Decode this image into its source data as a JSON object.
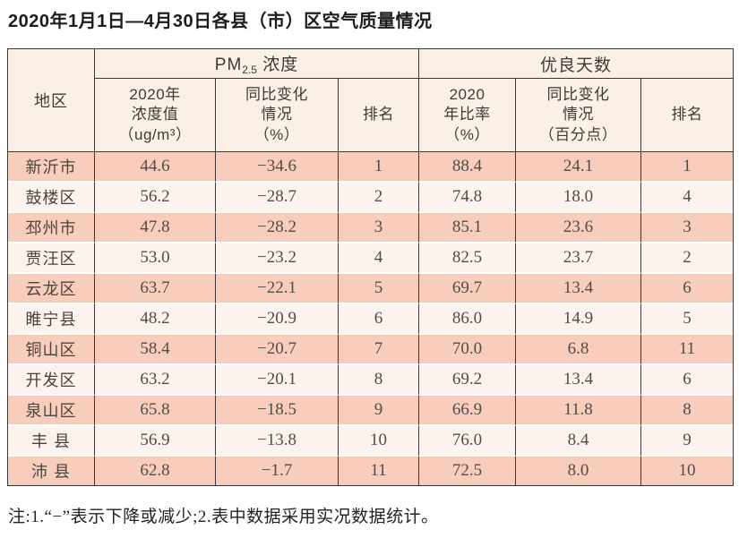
{
  "title": "2020年1月1日—4月30日各县（市）区空气质量情况",
  "footnote": "注:1.“−”表示下降或减少;2.表中数据采用实况数据统计。",
  "colors": {
    "row_stripe_bg": "#f8cdbc",
    "row_light_bg": "#fdf3ee",
    "header_bg": "#fbf0e5",
    "border": "#3a3735",
    "title_text": "#1d1c1b",
    "body_text": "#514c48"
  },
  "table": {
    "header": {
      "region": "地区",
      "pm25_group": {
        "prefix": "PM",
        "sub": "2.5",
        "suffix": " 浓度"
      },
      "good_days_group": "优良天数",
      "pm25_value": "2020年\n浓度值\n（ug/m³）",
      "pm25_change": "同比变化\n情况\n（%）",
      "pm25_rank": "排名",
      "days_rate": "2020\n年比率\n（%）",
      "days_change": "同比变化\n情况\n（百分点）",
      "days_rank": "排名"
    },
    "rows": [
      {
        "region": "新沂市",
        "pm25_value": "44.6",
        "pm25_change": "−34.6",
        "pm25_rank": "1",
        "days_rate": "88.4",
        "days_change": "24.1",
        "days_rank": "1"
      },
      {
        "region": "鼓楼区",
        "pm25_value": "56.2",
        "pm25_change": "−28.7",
        "pm25_rank": "2",
        "days_rate": "74.8",
        "days_change": "18.0",
        "days_rank": "4"
      },
      {
        "region": "邳州市",
        "pm25_value": "47.8",
        "pm25_change": "−28.2",
        "pm25_rank": "3",
        "days_rate": "85.1",
        "days_change": "23.6",
        "days_rank": "3"
      },
      {
        "region": "贾汪区",
        "pm25_value": "53.0",
        "pm25_change": "−23.2",
        "pm25_rank": "4",
        "days_rate": "82.5",
        "days_change": "23.7",
        "days_rank": "2"
      },
      {
        "region": "云龙区",
        "pm25_value": "63.7",
        "pm25_change": "−22.1",
        "pm25_rank": "5",
        "days_rate": "69.7",
        "days_change": "13.4",
        "days_rank": "6"
      },
      {
        "region": "睢宁县",
        "pm25_value": "48.2",
        "pm25_change": "−20.9",
        "pm25_rank": "6",
        "days_rate": "86.0",
        "days_change": "14.9",
        "days_rank": "5"
      },
      {
        "region": "铜山区",
        "pm25_value": "58.4",
        "pm25_change": "−20.7",
        "pm25_rank": "7",
        "days_rate": "70.0",
        "days_change": "6.8",
        "days_rank": "11"
      },
      {
        "region": "开发区",
        "pm25_value": "63.2",
        "pm25_change": "−20.1",
        "pm25_rank": "8",
        "days_rate": "69.2",
        "days_change": "13.4",
        "days_rank": "6"
      },
      {
        "region": "泉山区",
        "pm25_value": "65.8",
        "pm25_change": "−18.5",
        "pm25_rank": "9",
        "days_rate": "66.9",
        "days_change": "11.8",
        "days_rank": "8"
      },
      {
        "region": "丰 县",
        "pm25_value": "56.9",
        "pm25_change": "−13.8",
        "pm25_rank": "10",
        "days_rate": "76.0",
        "days_change": "8.4",
        "days_rank": "9"
      },
      {
        "region": "沛 县",
        "pm25_value": "62.8",
        "pm25_change": "−1.7",
        "pm25_rank": "11",
        "days_rate": "72.5",
        "days_change": "8.0",
        "days_rank": "10"
      }
    ]
  }
}
